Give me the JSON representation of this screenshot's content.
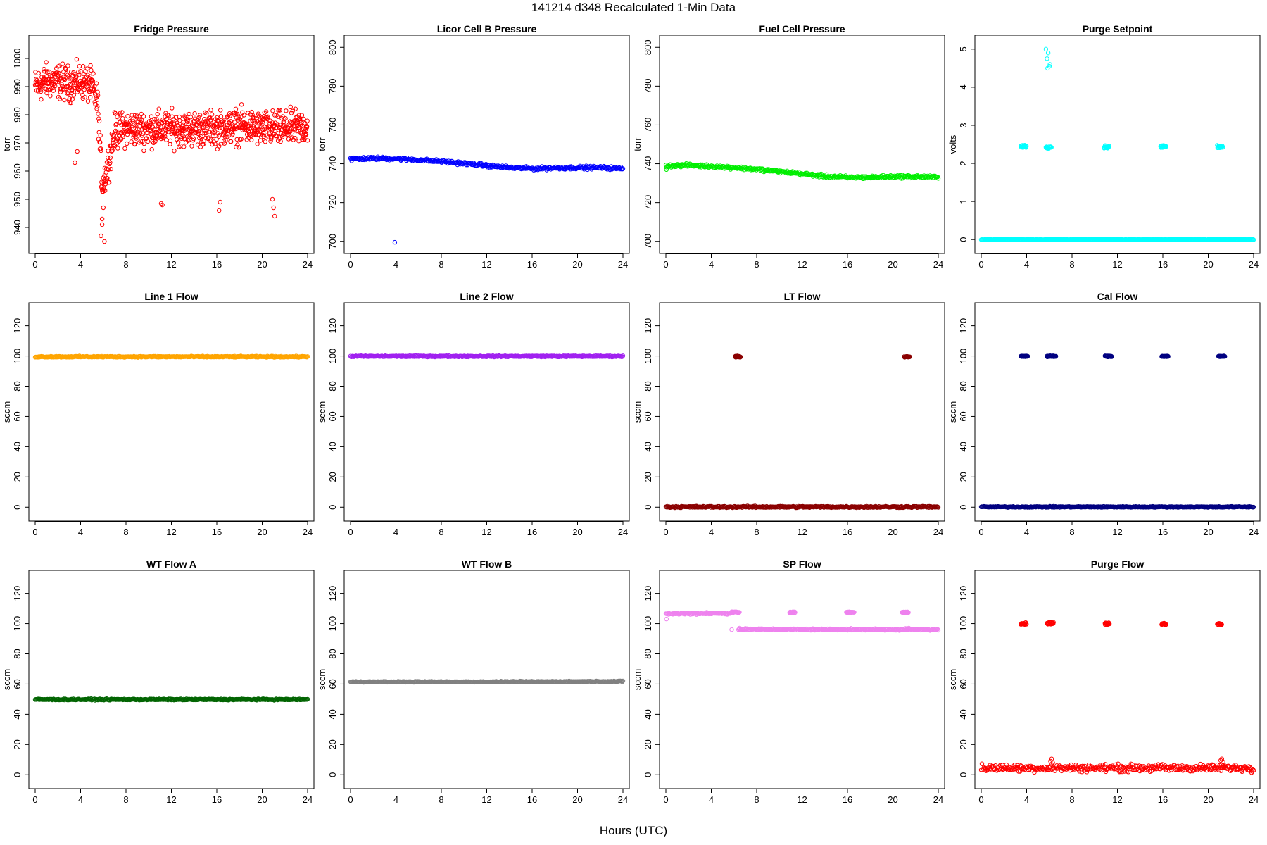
{
  "figure": {
    "title": "141214   d348   Recalculated 1-Min Data",
    "xlabel": "Hours (UTC)"
  },
  "chart_data": [
    {
      "type": "scatter",
      "title": "Fridge Pressure",
      "xlabel": "",
      "ylabel": "torr",
      "color": "#ff0000",
      "xlim": [
        0,
        24
      ],
      "ylim": [
        933,
        1006
      ],
      "xticks": [
        0,
        4,
        8,
        12,
        16,
        20,
        24
      ],
      "yticks": [
        940,
        950,
        960,
        970,
        980,
        990,
        1000
      ],
      "series": [
        {
          "name": "Fridge Pressure",
          "kind": "noisy",
          "x": [
            0,
            1,
            2,
            3,
            4,
            5,
            5.5,
            5.9,
            6.3,
            7,
            8,
            10,
            12,
            14,
            16,
            18,
            20,
            22,
            24
          ],
          "y": [
            990,
            992,
            992,
            991,
            992,
            990,
            984,
            955,
            960,
            974,
            975,
            975,
            975,
            975,
            975,
            976,
            975,
            975,
            976
          ],
          "spread": 9
        },
        {
          "name": "Fridge Pressure dips",
          "kind": "points",
          "x": [
            5.8,
            5.9,
            6.0,
            6.1,
            11.1,
            11.2,
            16.2,
            16.3,
            20.9,
            21.0,
            21.1,
            3.5,
            3.7,
            5.9
          ],
          "y": [
            937,
            943,
            947,
            935,
            948.5,
            948,
            946,
            949,
            950,
            947,
            944,
            963,
            967,
            941
          ]
        }
      ]
    },
    {
      "type": "scatter",
      "title": "Licor Cell B Pressure",
      "xlabel": "",
      "ylabel": "torr",
      "color": "#0000ff",
      "xlim": [
        0,
        24
      ],
      "ylim": [
        697,
        803
      ],
      "xticks": [
        0,
        4,
        8,
        12,
        16,
        20,
        24
      ],
      "yticks": [
        700,
        720,
        740,
        760,
        780,
        800
      ],
      "series": [
        {
          "name": "Licor Cell B Pressure",
          "kind": "line",
          "x": [
            0,
            2,
            4,
            6,
            8,
            10,
            12,
            14,
            16,
            18,
            20,
            22,
            24
          ],
          "y": [
            742.5,
            742.8,
            742.6,
            742,
            741.2,
            740.2,
            739,
            738,
            737.5,
            737.8,
            738,
            738,
            737.5
          ],
          "spread": 1.2
        },
        {
          "name": "Licor Cell B outliers",
          "kind": "points",
          "x": [
            0.1,
            3.9
          ],
          "y": [
            741.5,
            699.5
          ]
        }
      ]
    },
    {
      "type": "scatter",
      "title": "Fuel Cell Pressure",
      "xlabel": "",
      "ylabel": "torr",
      "color": "#00ee00",
      "xlim": [
        0,
        24
      ],
      "ylim": [
        697,
        803
      ],
      "xticks": [
        0,
        4,
        8,
        12,
        16,
        20,
        24
      ],
      "yticks": [
        700,
        720,
        740,
        760,
        780,
        800
      ],
      "series": [
        {
          "name": "Fuel Cell Pressure",
          "kind": "line",
          "x": [
            0,
            2,
            4,
            6,
            8,
            10,
            12,
            14,
            16,
            18,
            20,
            22,
            24
          ],
          "y": [
            739,
            739.2,
            738.7,
            738,
            737.2,
            736,
            734.8,
            733.6,
            733,
            733,
            733.4,
            733.4,
            733
          ],
          "spread": 1.2
        },
        {
          "name": "Fuel Cell outliers",
          "kind": "points",
          "x": [
            0.05
          ],
          "y": [
            737
          ]
        }
      ]
    },
    {
      "type": "scatter",
      "title": "Purge Setpoint",
      "xlabel": "",
      "ylabel": "volts",
      "color": "#00ffff",
      "xlim": [
        0,
        24
      ],
      "ylim": [
        -0.2,
        5.2
      ],
      "xticks": [
        0,
        4,
        8,
        12,
        16,
        20,
        24
      ],
      "yticks": [
        0,
        1,
        2,
        3,
        4,
        5
      ],
      "series": [
        {
          "name": "Purge Setpoint baseline",
          "kind": "line",
          "x": [
            0,
            24
          ],
          "y": [
            0,
            0
          ],
          "spread": 0.01
        },
        {
          "name": "Purge Setpoint events",
          "kind": "segments",
          "segments": [
            [
              3.5,
              4.0,
              2.45
            ],
            [
              5.7,
              6.2,
              2.43
            ],
            [
              10.8,
              11.3,
              2.43
            ],
            [
              15.8,
              16.3,
              2.45
            ],
            [
              20.8,
              21.3,
              2.43
            ]
          ],
          "spread": 0.05
        },
        {
          "name": "Purge Setpoint peaks",
          "kind": "points",
          "x": [
            5.7,
            5.9,
            5.8,
            6.0,
            5.85,
            6.05
          ],
          "y": [
            5.0,
            4.9,
            4.75,
            4.55,
            4.5,
            4.6
          ]
        }
      ]
    },
    {
      "type": "scatter",
      "title": "Line 1 Flow",
      "xlabel": "",
      "ylabel": "sccm",
      "color": "#ffa500",
      "xlim": [
        0,
        24
      ],
      "ylim": [
        -5,
        131
      ],
      "xticks": [
        0,
        4,
        8,
        12,
        16,
        20,
        24
      ],
      "yticks": [
        0,
        20,
        40,
        60,
        80,
        100,
        120
      ],
      "series": [
        {
          "name": "Line 1 Flow",
          "kind": "line",
          "x": [
            0,
            24
          ],
          "y": [
            99.5,
            99.5
          ],
          "spread": 0.6
        }
      ]
    },
    {
      "type": "scatter",
      "title": "Line 2 Flow",
      "xlabel": "",
      "ylabel": "sccm",
      "color": "#a020f0",
      "xlim": [
        0,
        24
      ],
      "ylim": [
        -5,
        131
      ],
      "xticks": [
        0,
        4,
        8,
        12,
        16,
        20,
        24
      ],
      "yticks": [
        0,
        20,
        40,
        60,
        80,
        100,
        120
      ],
      "series": [
        {
          "name": "Line 2 Flow",
          "kind": "line",
          "x": [
            0,
            24
          ],
          "y": [
            99.8,
            99.8
          ],
          "spread": 0.6
        }
      ]
    },
    {
      "type": "scatter",
      "title": "LT Flow",
      "xlabel": "",
      "ylabel": "sccm",
      "color": "#8b0000",
      "xlim": [
        0,
        24
      ],
      "ylim": [
        -5,
        131
      ],
      "xticks": [
        0,
        4,
        8,
        12,
        16,
        20,
        24
      ],
      "yticks": [
        0,
        20,
        40,
        60,
        80,
        100,
        120
      ],
      "series": [
        {
          "name": "LT Flow baseline",
          "kind": "line",
          "x": [
            0,
            24
          ],
          "y": [
            0.2,
            0.2
          ],
          "spread": 0.8
        },
        {
          "name": "LT Flow events",
          "kind": "segments",
          "segments": [
            [
              6.1,
              6.6,
              99.5
            ],
            [
              21.0,
              21.5,
              99.5
            ]
          ],
          "spread": 0.6
        }
      ]
    },
    {
      "type": "scatter",
      "title": "Cal Flow",
      "xlabel": "",
      "ylabel": "sccm",
      "color": "#000080",
      "xlim": [
        0,
        24
      ],
      "ylim": [
        -5,
        131
      ],
      "xticks": [
        0,
        4,
        8,
        12,
        16,
        20,
        24
      ],
      "yticks": [
        0,
        20,
        40,
        60,
        80,
        100,
        120
      ],
      "series": [
        {
          "name": "Cal Flow baseline",
          "kind": "line",
          "x": [
            0,
            24
          ],
          "y": [
            0.2,
            0.2
          ],
          "spread": 0.5
        },
        {
          "name": "Cal Flow events",
          "kind": "segments",
          "segments": [
            [
              3.5,
              4.1,
              99.8
            ],
            [
              5.8,
              6.6,
              99.8
            ],
            [
              10.9,
              11.5,
              99.8
            ],
            [
              15.9,
              16.5,
              99.8
            ],
            [
              20.9,
              21.5,
              99.8
            ]
          ],
          "spread": 0.5
        }
      ]
    },
    {
      "type": "scatter",
      "title": "WT Flow A",
      "xlabel": "",
      "ylabel": "sccm",
      "color": "#006400",
      "xlim": [
        0,
        24
      ],
      "ylim": [
        -5,
        131
      ],
      "xticks": [
        0,
        4,
        8,
        12,
        16,
        20,
        24
      ],
      "yticks": [
        0,
        20,
        40,
        60,
        80,
        100,
        120
      ],
      "series": [
        {
          "name": "WT Flow A",
          "kind": "line",
          "x": [
            0,
            24
          ],
          "y": [
            49.8,
            49.8
          ],
          "spread": 0.6
        }
      ]
    },
    {
      "type": "scatter",
      "title": "WT Flow B",
      "xlabel": "",
      "ylabel": "sccm",
      "color": "#808080",
      "xlim": [
        0,
        24
      ],
      "ylim": [
        -5,
        131
      ],
      "xticks": [
        0,
        4,
        8,
        12,
        16,
        20,
        24
      ],
      "yticks": [
        0,
        20,
        40,
        60,
        80,
        100,
        120
      ],
      "series": [
        {
          "name": "WT Flow B",
          "kind": "line",
          "x": [
            0,
            12,
            24
          ],
          "y": [
            61.5,
            61.5,
            61.8
          ],
          "spread": 0.5
        }
      ]
    },
    {
      "type": "scatter",
      "title": "SP Flow",
      "xlabel": "",
      "ylabel": "sccm",
      "color": "#ee82ee",
      "xlim": [
        0,
        24
      ],
      "ylim": [
        -5,
        131
      ],
      "xticks": [
        0,
        4,
        8,
        12,
        16,
        20,
        24
      ],
      "yticks": [
        0,
        20,
        40,
        60,
        80,
        100,
        120
      ],
      "series": [
        {
          "name": "SP Flow early",
          "kind": "line",
          "x": [
            0,
            5.7
          ],
          "y": [
            106.5,
            106.8
          ],
          "spread": 0.8
        },
        {
          "name": "SP Flow late",
          "kind": "line",
          "x": [
            6.4,
            24
          ],
          "y": [
            96.2,
            96.0
          ],
          "spread": 0.8
        },
        {
          "name": "SP Flow events",
          "kind": "segments",
          "segments": [
            [
              5.7,
              6.5,
              107.5
            ],
            [
              10.9,
              11.4,
              107.5
            ],
            [
              15.9,
              16.6,
              107.5
            ],
            [
              20.8,
              21.4,
              107.5
            ]
          ],
          "spread": 0.6
        },
        {
          "name": "SP Flow outliers",
          "kind": "points",
          "x": [
            0.05,
            5.8,
            6.5,
            3.6,
            21.4
          ],
          "y": [
            103,
            96,
            97,
            107.5,
            97
          ]
        }
      ]
    },
    {
      "type": "scatter",
      "title": "Purge Flow",
      "xlabel": "",
      "ylabel": "sccm",
      "color": "#ff0000",
      "xlim": [
        0,
        24
      ],
      "ylim": [
        -5,
        131
      ],
      "xticks": [
        0,
        4,
        8,
        12,
        16,
        20,
        24
      ],
      "yticks": [
        0,
        20,
        40,
        60,
        80,
        100,
        120
      ],
      "series": [
        {
          "name": "Purge Flow baseline",
          "kind": "line",
          "x": [
            0,
            24
          ],
          "y": [
            4.5,
            4.5
          ],
          "spread": 3.5
        },
        {
          "name": "Purge Flow events",
          "kind": "segments",
          "segments": [
            [
              3.5,
              4.0,
              100
            ],
            [
              5.8,
              6.4,
              100.3
            ],
            [
              10.9,
              11.3,
              99.8
            ],
            [
              15.9,
              16.3,
              99.8
            ],
            [
              20.8,
              21.2,
              99.8
            ]
          ],
          "spread": 1.0
        },
        {
          "name": "Purge Flow bumps",
          "kind": "points",
          "x": [
            6.1,
            6.2,
            6.3,
            21.1,
            21.2,
            21.3
          ],
          "y": [
            9,
            10.5,
            8,
            9.5,
            10.5,
            8.5
          ]
        }
      ]
    }
  ]
}
